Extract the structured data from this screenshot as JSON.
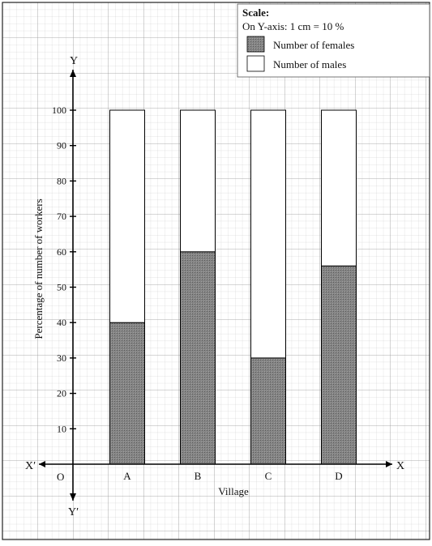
{
  "scale": {
    "heading": "Scale:",
    "text": "On Y-axis: 1 cm = 10 %"
  },
  "axes": {
    "origin": "O",
    "x_pos": "X",
    "x_neg": "X′",
    "y_pos": "Y",
    "y_neg": "Y′"
  },
  "chart_data": {
    "type": "bar",
    "stacked": true,
    "percent": true,
    "categories": [
      "A",
      "B",
      "C",
      "D"
    ],
    "series": [
      {
        "name": "Number of females",
        "values": [
          40,
          60,
          30,
          56
        ],
        "color": "#7a7a7a"
      },
      {
        "name": "Number of males",
        "values": [
          60,
          40,
          70,
          44
        ],
        "color": "#ffffff"
      }
    ],
    "title": "",
    "xlabel": "Village",
    "ylabel": "Percentage of number of workers",
    "ylim": [
      0,
      100
    ],
    "yticks": [
      10,
      20,
      30,
      40,
      50,
      60,
      70,
      80,
      90,
      100
    ],
    "grid": true,
    "legend_position": "top-right"
  }
}
